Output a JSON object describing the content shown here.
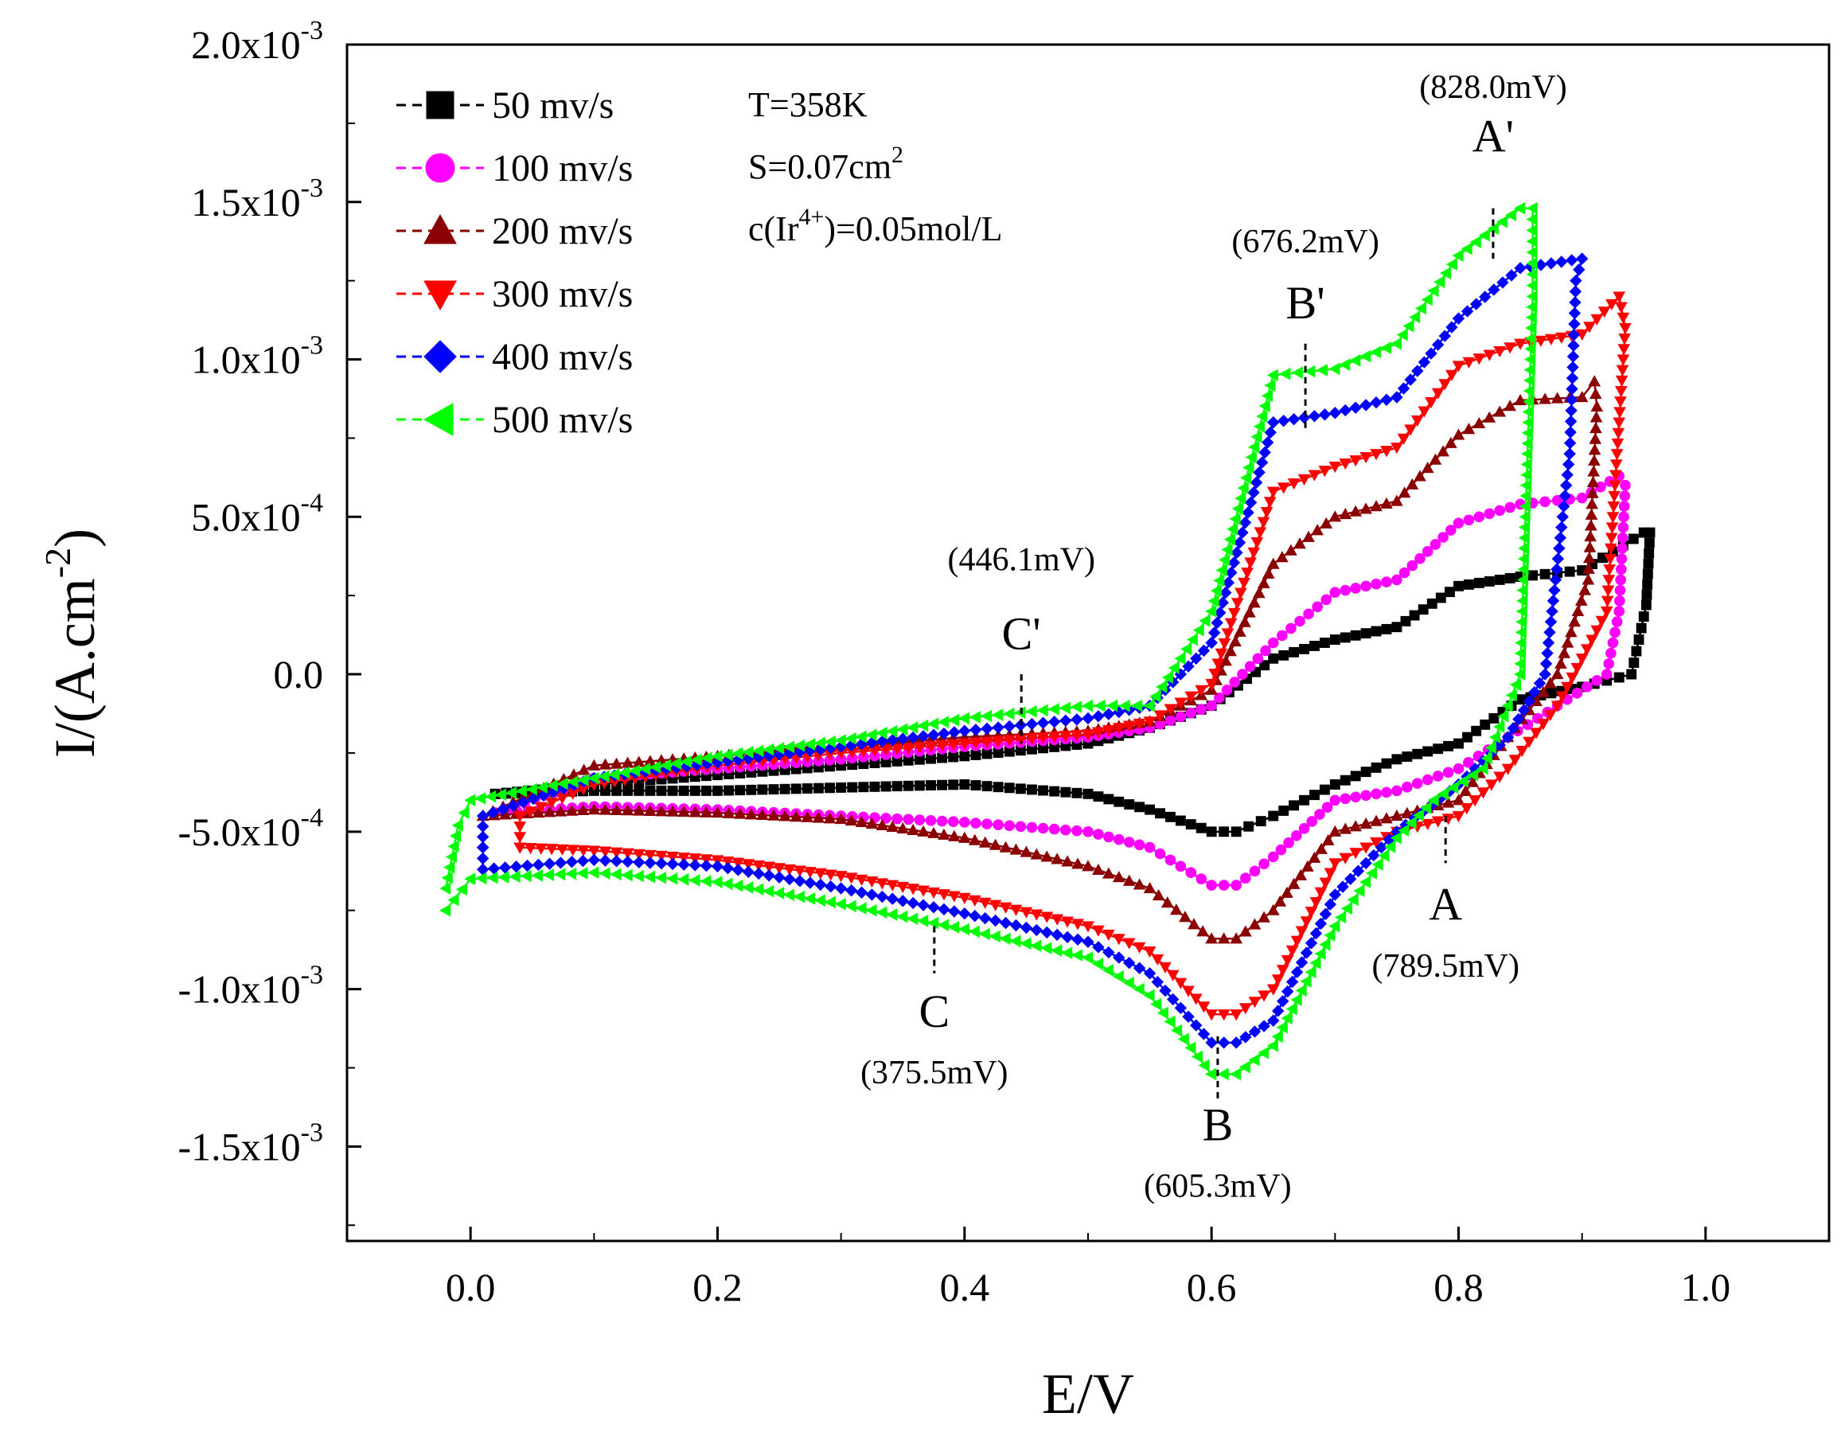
{
  "chart_data": {
    "type": "line",
    "title": "",
    "xlabel": "E/V",
    "ylabel": "I/(A.cm-2)",
    "xlim": [
      -0.1,
      1.1
    ],
    "ylim": [
      -0.0018,
      0.002
    ],
    "x_ticks": [
      {
        "value": 0.0,
        "label": "0.0"
      },
      {
        "value": 0.2,
        "label": "0.2"
      },
      {
        "value": 0.4,
        "label": "0.4"
      },
      {
        "value": 0.6,
        "label": "0.6"
      },
      {
        "value": 0.8,
        "label": "0.8"
      },
      {
        "value": 1.0,
        "label": "1.0"
      }
    ],
    "y_ticks": [
      {
        "value": 0.002,
        "mant": "2.0x10",
        "exp": "-3"
      },
      {
        "value": 0.0015,
        "mant": "1.5x10",
        "exp": "-3"
      },
      {
        "value": 0.001,
        "mant": "1.0x10",
        "exp": "-3"
      },
      {
        "value": 0.0005,
        "mant": "5.0x10",
        "exp": "-4"
      },
      {
        "value": 0.0,
        "mant": "0.0",
        "exp": ""
      },
      {
        "value": -0.0005,
        "mant": "-5.0x10",
        "exp": "-4"
      },
      {
        "value": -0.001,
        "mant": "-1.0x10",
        "exp": "-3"
      },
      {
        "value": -0.0015,
        "mant": "-1.5x10",
        "exp": "-3"
      }
    ],
    "series": [
      {
        "name": "50 mv/s",
        "color": "#000000",
        "marker": "square",
        "points": [
          [
            0.02,
            -0.00038
          ],
          [
            0.1,
            -0.00035
          ],
          [
            0.2,
            -0.00032
          ],
          [
            0.3,
            -0.00029
          ],
          [
            0.4,
            -0.00026
          ],
          [
            0.5,
            -0.00022
          ],
          [
            0.55,
            -0.00017
          ],
          [
            0.6,
            -0.0001
          ],
          [
            0.65,
            5e-05
          ],
          [
            0.7,
            0.00011
          ],
          [
            0.75,
            0.00015
          ],
          [
            0.8,
            0.00028
          ],
          [
            0.85,
            0.00031
          ],
          [
            0.9,
            0.00033
          ],
          [
            0.95,
            0.00045
          ],
          [
            0.955,
            0.00045
          ],
          [
            0.952,
            0.00022
          ],
          [
            0.94,
            0.0
          ],
          [
            0.9,
            -4e-05
          ],
          [
            0.85,
            -8e-05
          ],
          [
            0.8,
            -0.00022
          ],
          [
            0.75,
            -0.00027
          ],
          [
            0.7,
            -0.00035
          ],
          [
            0.65,
            -0.00045
          ],
          [
            0.62,
            -0.0005
          ],
          [
            0.6,
            -0.0005
          ],
          [
            0.55,
            -0.00043
          ],
          [
            0.5,
            -0.00038
          ],
          [
            0.4,
            -0.00035
          ],
          [
            0.3,
            -0.00036
          ],
          [
            0.2,
            -0.00037
          ],
          [
            0.1,
            -0.00037
          ],
          [
            0.02,
            -0.00038
          ]
        ]
      },
      {
        "name": "100 mv/s",
        "color": "#ff00ff",
        "marker": "circle",
        "points": [
          [
            0.02,
            -0.00044
          ],
          [
            0.1,
            -0.00033
          ],
          [
            0.2,
            -0.0003
          ],
          [
            0.3,
            -0.00027
          ],
          [
            0.4,
            -0.00023
          ],
          [
            0.5,
            -0.0002
          ],
          [
            0.55,
            -0.00017
          ],
          [
            0.6,
            -0.0001
          ],
          [
            0.65,
            0.0001
          ],
          [
            0.7,
            0.00026
          ],
          [
            0.75,
            0.0003
          ],
          [
            0.8,
            0.00048
          ],
          [
            0.85,
            0.00054
          ],
          [
            0.9,
            0.00056
          ],
          [
            0.93,
            0.00063
          ],
          [
            0.935,
            0.0006
          ],
          [
            0.93,
            0.0002
          ],
          [
            0.92,
            0.0
          ],
          [
            0.88,
            -0.0001
          ],
          [
            0.84,
            -0.0002
          ],
          [
            0.8,
            -0.0003
          ],
          [
            0.75,
            -0.00037
          ],
          [
            0.7,
            -0.0004
          ],
          [
            0.65,
            -0.00058
          ],
          [
            0.62,
            -0.00067
          ],
          [
            0.6,
            -0.00067
          ],
          [
            0.55,
            -0.00055
          ],
          [
            0.5,
            -0.0005
          ],
          [
            0.4,
            -0.00047
          ],
          [
            0.3,
            -0.00045
          ],
          [
            0.2,
            -0.00043
          ],
          [
            0.1,
            -0.00042
          ],
          [
            0.02,
            -0.00044
          ]
        ]
      },
      {
        "name": "200 mv/s",
        "color": "#8b0000",
        "marker": "triangle-up",
        "points": [
          [
            0.01,
            -0.00045
          ],
          [
            0.1,
            -0.00029
          ],
          [
            0.2,
            -0.00026
          ],
          [
            0.3,
            -0.00023
          ],
          [
            0.4,
            -0.0002
          ],
          [
            0.5,
            -0.00018
          ],
          [
            0.55,
            -0.00015
          ],
          [
            0.6,
            -5e-05
          ],
          [
            0.65,
            0.00035
          ],
          [
            0.7,
            0.0005
          ],
          [
            0.75,
            0.00055
          ],
          [
            0.8,
            0.00076
          ],
          [
            0.85,
            0.00087
          ],
          [
            0.9,
            0.00088
          ],
          [
            0.91,
            0.00093
          ],
          [
            0.912,
            0.00085
          ],
          [
            0.905,
            0.0003
          ],
          [
            0.88,
            0.0
          ],
          [
            0.84,
            -0.0002
          ],
          [
            0.8,
            -0.0004
          ],
          [
            0.75,
            -0.00045
          ],
          [
            0.7,
            -0.0005
          ],
          [
            0.65,
            -0.00075
          ],
          [
            0.62,
            -0.00084
          ],
          [
            0.6,
            -0.00084
          ],
          [
            0.55,
            -0.00068
          ],
          [
            0.5,
            -0.00061
          ],
          [
            0.4,
            -0.00052
          ],
          [
            0.3,
            -0.00046
          ],
          [
            0.2,
            -0.00044
          ],
          [
            0.1,
            -0.00043
          ],
          [
            0.01,
            -0.00045
          ]
        ]
      },
      {
        "name": "300 mv/s",
        "color": "#ff0000",
        "marker": "triangle-down",
        "points": [
          [
            0.04,
            -0.00055
          ],
          [
            0.04,
            -0.00045
          ],
          [
            0.1,
            -0.00035
          ],
          [
            0.2,
            -0.00029
          ],
          [
            0.3,
            -0.00025
          ],
          [
            0.4,
            -0.00022
          ],
          [
            0.5,
            -0.00019
          ],
          [
            0.55,
            -0.00015
          ],
          [
            0.6,
            -3e-05
          ],
          [
            0.65,
            0.00058
          ],
          [
            0.7,
            0.00066
          ],
          [
            0.75,
            0.00072
          ],
          [
            0.8,
            0.00098
          ],
          [
            0.85,
            0.00105
          ],
          [
            0.9,
            0.00108
          ],
          [
            0.93,
            0.0012
          ],
          [
            0.935,
            0.0011
          ],
          [
            0.92,
            0.0002
          ],
          [
            0.88,
            -0.0001
          ],
          [
            0.84,
            -0.0003
          ],
          [
            0.8,
            -0.00045
          ],
          [
            0.75,
            -0.0005
          ],
          [
            0.7,
            -0.0006
          ],
          [
            0.65,
            -0.001
          ],
          [
            0.62,
            -0.00108
          ],
          [
            0.6,
            -0.00108
          ],
          [
            0.55,
            -0.00088
          ],
          [
            0.5,
            -0.0008
          ],
          [
            0.4,
            -0.00071
          ],
          [
            0.3,
            -0.00064
          ],
          [
            0.2,
            -0.00059
          ],
          [
            0.1,
            -0.00056
          ],
          [
            0.04,
            -0.00055
          ]
        ]
      },
      {
        "name": "400 mv/s",
        "color": "#0000ff",
        "marker": "diamond",
        "points": [
          [
            0.01,
            -0.00055
          ],
          [
            0.01,
            -0.00045
          ],
          [
            0.1,
            -0.00033
          ],
          [
            0.2,
            -0.00028
          ],
          [
            0.3,
            -0.00023
          ],
          [
            0.4,
            -0.00018
          ],
          [
            0.5,
            -0.00014
          ],
          [
            0.55,
            -0.0001
          ],
          [
            0.6,
            0.0001
          ],
          [
            0.65,
            0.0008
          ],
          [
            0.7,
            0.00083
          ],
          [
            0.75,
            0.00088
          ],
          [
            0.8,
            0.00113
          ],
          [
            0.85,
            0.00129
          ],
          [
            0.9,
            0.00132
          ],
          [
            0.895,
            0.00125
          ],
          [
            0.89,
            0.0007
          ],
          [
            0.87,
            0.0
          ],
          [
            0.84,
            -0.0002
          ],
          [
            0.8,
            -0.00035
          ],
          [
            0.75,
            -0.0005
          ],
          [
            0.7,
            -0.0007
          ],
          [
            0.65,
            -0.0011
          ],
          [
            0.62,
            -0.00117
          ],
          [
            0.6,
            -0.00117
          ],
          [
            0.55,
            -0.00095
          ],
          [
            0.5,
            -0.00085
          ],
          [
            0.4,
            -0.00076
          ],
          [
            0.3,
            -0.00068
          ],
          [
            0.2,
            -0.00061
          ],
          [
            0.1,
            -0.00059
          ],
          [
            0.01,
            -0.00062
          ],
          [
            0.01,
            -0.00055
          ]
        ]
      },
      {
        "name": "500 mv/s",
        "color": "#00ff00",
        "marker": "triangle-left",
        "points": [
          [
            -0.02,
            -0.00068
          ],
          [
            -0.01,
            -0.00048
          ],
          [
            0.0,
            -0.0004
          ],
          [
            0.1,
            -0.00033
          ],
          [
            0.2,
            -0.00026
          ],
          [
            0.3,
            -0.00021
          ],
          [
            0.4,
            -0.00014
          ],
          [
            0.5,
            -0.0001
          ],
          [
            0.55,
            -0.0001
          ],
          [
            0.6,
            0.0002
          ],
          [
            0.65,
            0.00095
          ],
          [
            0.7,
            0.00097
          ],
          [
            0.75,
            0.00105
          ],
          [
            0.8,
            0.00133
          ],
          [
            0.85,
            0.00148
          ],
          [
            0.86,
            0.00148
          ],
          [
            0.86,
            0.0012
          ],
          [
            0.85,
            0.0
          ],
          [
            0.82,
            -0.0003
          ],
          [
            0.78,
            -0.0004
          ],
          [
            0.75,
            -0.00052
          ],
          [
            0.7,
            -0.0008
          ],
          [
            0.65,
            -0.00118
          ],
          [
            0.62,
            -0.00127
          ],
          [
            0.6,
            -0.00127
          ],
          [
            0.55,
            -0.00102
          ],
          [
            0.5,
            -0.0009
          ],
          [
            0.4,
            -0.00081
          ],
          [
            0.3,
            -0.00073
          ],
          [
            0.2,
            -0.00066
          ],
          [
            0.1,
            -0.00063
          ],
          [
            0.0,
            -0.00065
          ],
          [
            -0.02,
            -0.00075
          ]
        ]
      }
    ],
    "conditions": [
      {
        "prefix": "T=358K",
        "sup": "",
        "suffix": ""
      },
      {
        "prefix": "S=0.07cm",
        "sup": "2",
        "suffix": ""
      },
      {
        "prefix": "c(Ir",
        "sup": "4+",
        "suffix": ")=0.05mol/L"
      }
    ],
    "annotations": [
      {
        "letter": "A'",
        "value": "(828.0mV)",
        "x": 0.828,
        "y_start": 0.00148,
        "y_end": 0.00132,
        "text_y": 0.00166,
        "sub_y": 0.00183
      },
      {
        "letter": "B'",
        "value": "(676.2mV)",
        "x": 0.676,
        "y_start": 0.00105,
        "y_end": 0.00078,
        "text_y": 0.00113,
        "sub_y": 0.00134
      },
      {
        "letter": "C'",
        "value": "(446.1mV)",
        "x": 0.446,
        "y_start": 0.0,
        "y_end": -0.00022,
        "text_y": 8e-05,
        "sub_y": 0.00033
      },
      {
        "letter": "A",
        "value": "(789.5mV)",
        "x": 0.7895,
        "y_start": -0.00045,
        "y_end": -0.0006,
        "text_y": -0.00078,
        "sub_y": -0.00096
      },
      {
        "letter": "B",
        "value": "(605.3mV)",
        "x": 0.605,
        "y_start": -0.00115,
        "y_end": -0.00135,
        "text_y": -0.00148,
        "sub_y": -0.00166
      },
      {
        "letter": "C",
        "value": "(375.5mV)",
        "x": 0.3755,
        "y_start": -0.0008,
        "y_end": -0.00095,
        "text_y": -0.00112,
        "sub_y": -0.0013
      }
    ]
  }
}
